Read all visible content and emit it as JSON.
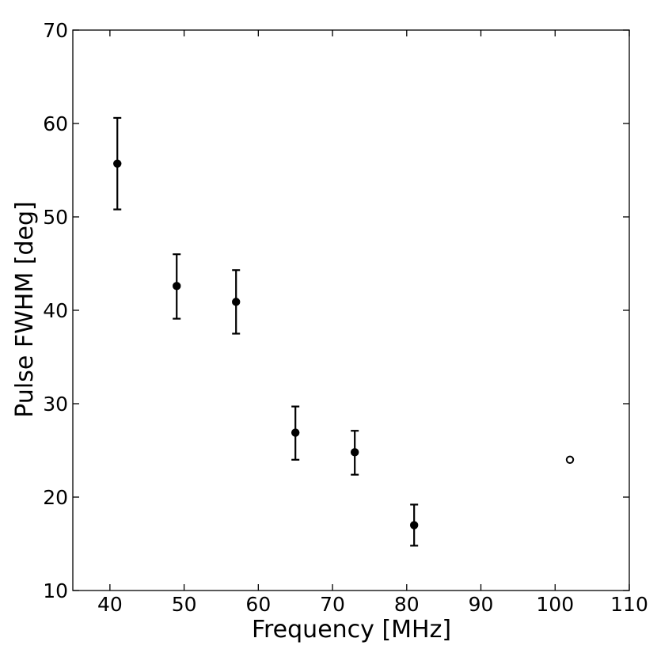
{
  "chart_data": {
    "type": "scatter",
    "title": "",
    "xlabel": "Frequency [MHz]",
    "ylabel": "Pulse FWHM [deg]",
    "xlim": [
      35,
      110
    ],
    "ylim": [
      10,
      70
    ],
    "xticks": [
      40,
      50,
      60,
      70,
      80,
      90,
      100,
      110
    ],
    "yticks": [
      10,
      20,
      30,
      40,
      50,
      60,
      70
    ],
    "grid": false,
    "series": [
      {
        "marker": "filled-circle",
        "color": "#000000",
        "points": [
          {
            "x": 41,
            "y": 55.7,
            "err_low": 50.8,
            "err_high": 60.6
          },
          {
            "x": 49,
            "y": 42.6,
            "err_low": 39.1,
            "err_high": 46.0
          },
          {
            "x": 57,
            "y": 40.9,
            "err_low": 37.5,
            "err_high": 44.3
          },
          {
            "x": 65,
            "y": 26.9,
            "err_low": 24.0,
            "err_high": 29.7
          },
          {
            "x": 73,
            "y": 24.8,
            "err_low": 22.4,
            "err_high": 27.1
          },
          {
            "x": 81,
            "y": 17.0,
            "err_low": 14.8,
            "err_high": 19.2
          }
        ]
      },
      {
        "marker": "open-circle",
        "color": "#000000",
        "points": [
          {
            "x": 102,
            "y": 24.0
          }
        ]
      }
    ]
  }
}
